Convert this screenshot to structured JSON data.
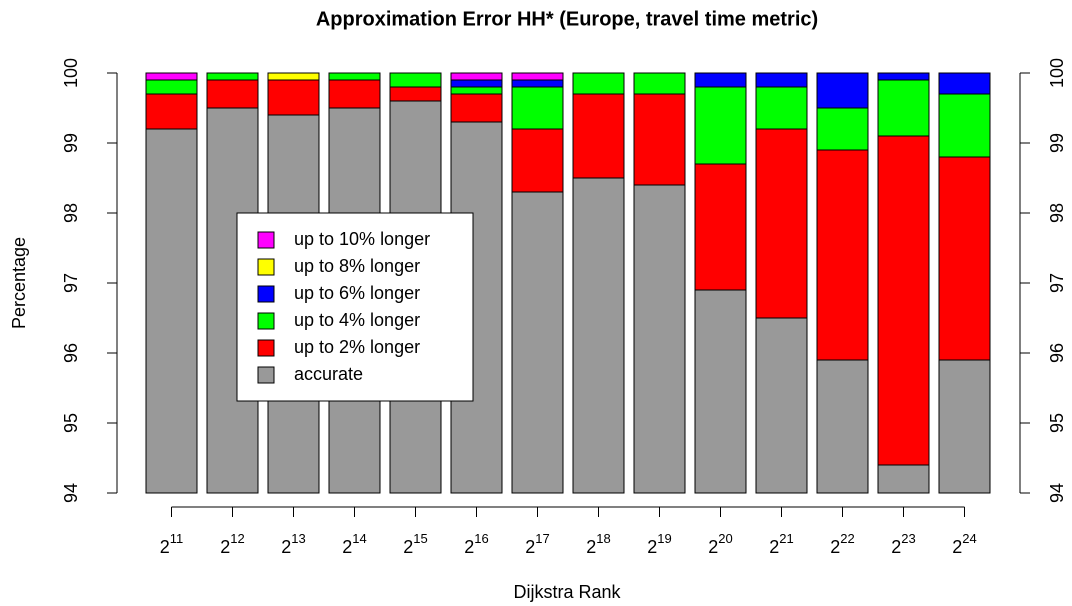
{
  "chart_data": {
    "type": "stacked_bar",
    "title": "Approximation Error HH* (Europe, travel time metric)",
    "x_label": "Dijkstra Rank",
    "y_label": "Percentage",
    "categories": [
      {
        "base": "2",
        "exponent": "11"
      },
      {
        "base": "2",
        "exponent": "12"
      },
      {
        "base": "2",
        "exponent": "13"
      },
      {
        "base": "2",
        "exponent": "14"
      },
      {
        "base": "2",
        "exponent": "15"
      },
      {
        "base": "2",
        "exponent": "16"
      },
      {
        "base": "2",
        "exponent": "17"
      },
      {
        "base": "2",
        "exponent": "18"
      },
      {
        "base": "2",
        "exponent": "19"
      },
      {
        "base": "2",
        "exponent": "20"
      },
      {
        "base": "2",
        "exponent": "21"
      },
      {
        "base": "2",
        "exponent": "22"
      },
      {
        "base": "2",
        "exponent": "23"
      },
      {
        "base": "2",
        "exponent": "24"
      }
    ],
    "series": [
      {
        "name": "accurate",
        "color": "#999999",
        "values": [
          99.2,
          99.5,
          99.4,
          99.5,
          99.6,
          99.3,
          98.3,
          98.5,
          98.4,
          96.9,
          96.5,
          95.9,
          94.4,
          95.9
        ]
      },
      {
        "name": "up to 2% longer",
        "color": "#ff0000",
        "values": [
          0.5,
          0.4,
          0.5,
          0.4,
          0.2,
          0.4,
          0.9,
          1.2,
          1.3,
          1.8,
          2.7,
          3.0,
          4.7,
          2.9
        ]
      },
      {
        "name": "up to 4% longer",
        "color": "#00ff00",
        "values": [
          0.2,
          0.1,
          0,
          0.1,
          0.2,
          0.1,
          0.6,
          0.3,
          0.3,
          1.1,
          0.6,
          0.6,
          0.8,
          0.9
        ]
      },
      {
        "name": "up to 6% longer",
        "color": "#0000ff",
        "values": [
          0,
          0,
          0,
          0,
          0,
          0.1,
          0.1,
          0,
          0,
          0.2,
          0.2,
          0.5,
          0.1,
          0.3
        ]
      },
      {
        "name": "up to 8% longer",
        "color": "#ffff00",
        "values": [
          0,
          0,
          0.1,
          0,
          0,
          0,
          0,
          0,
          0,
          0,
          0,
          0,
          0,
          0
        ]
      },
      {
        "name": "up to 10% longer",
        "color": "#ff00ff",
        "values": [
          0.1,
          0,
          0,
          0,
          0,
          0.1,
          0.1,
          0,
          0,
          0,
          0,
          0,
          0,
          0
        ]
      }
    ],
    "ylim": [
      94,
      100
    ],
    "yticks": [
      94,
      95,
      96,
      97,
      98,
      99,
      100
    ],
    "y2lim": [
      94,
      100
    ],
    "y2ticks": [
      94,
      95,
      96,
      97,
      98,
      99,
      100
    ],
    "legend_position": "left"
  }
}
